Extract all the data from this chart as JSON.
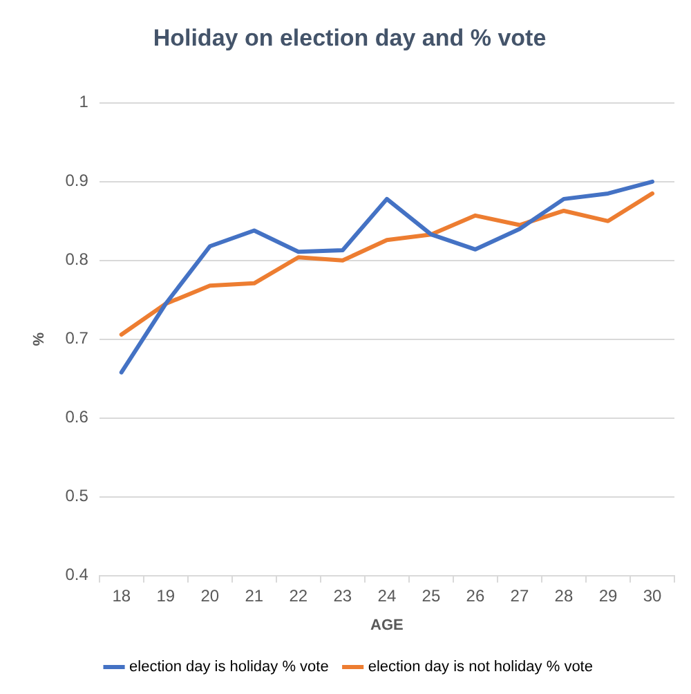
{
  "chart_data": {
    "type": "line",
    "title": "Holiday on election day and % vote",
    "xlabel": "AGE",
    "ylabel": "%",
    "categories": [
      "18",
      "19",
      "20",
      "21",
      "22",
      "23",
      "24",
      "25",
      "26",
      "27",
      "28",
      "29",
      "30"
    ],
    "series": [
      {
        "name": "election day is holiday % vote",
        "color": "#4472c4",
        "values": [
          0.658,
          0.745,
          0.818,
          0.838,
          0.811,
          0.813,
          0.878,
          0.833,
          0.814,
          0.84,
          0.878,
          0.885,
          0.9
        ]
      },
      {
        "name": "election day is not holiday % vote",
        "color": "#ed7d31",
        "values": [
          0.706,
          0.745,
          0.768,
          0.771,
          0.804,
          0.8,
          0.826,
          0.833,
          0.857,
          0.845,
          0.863,
          0.85,
          0.885
        ]
      }
    ],
    "ylim": [
      0.4,
      1
    ],
    "yticks": [
      0.4,
      0.5,
      0.6,
      0.7,
      0.8,
      0.9,
      1
    ],
    "grid": "y",
    "legend": "bottom",
    "marker": "none",
    "line_style": "solid"
  }
}
